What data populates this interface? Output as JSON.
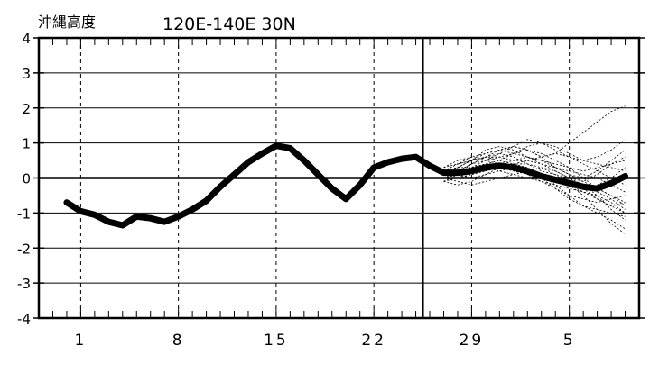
{
  "chart_data": {
    "type": "line",
    "title": "沖縄高度",
    "subtitle": "120E-140E  30N",
    "ylim": [
      -4,
      4
    ],
    "yticks": [
      4,
      3,
      2,
      1,
      0,
      -1,
      -2,
      -3,
      -4
    ],
    "xlim": [
      0,
      43
    ],
    "xtick_positions": [
      3,
      10,
      17,
      24,
      31,
      38
    ],
    "xtick_labels": [
      "1",
      "8",
      "15",
      "22",
      "29",
      "5"
    ],
    "forecast_start": 29,
    "grid": true,
    "zero_line": true,
    "series": [
      {
        "role": "analysis",
        "x": [
          2,
          3,
          4,
          5,
          6,
          7,
          8,
          9,
          10,
          11,
          12,
          13,
          14,
          15,
          16,
          17,
          18,
          19,
          20,
          21,
          22,
          23,
          24,
          25,
          26,
          27,
          28,
          29,
          30,
          31,
          32,
          33,
          34,
          35,
          36,
          37,
          38,
          39,
          40,
          41,
          42
        ],
        "y": [
          -0.7,
          -0.95,
          -1.05,
          -1.25,
          -1.35,
          -1.1,
          -1.15,
          -1.25,
          -1.1,
          -0.9,
          -0.65,
          -0.25,
          0.1,
          0.45,
          0.7,
          0.92,
          0.85,
          0.5,
          0.1,
          -0.3,
          -0.6,
          -0.2,
          0.3,
          0.45,
          0.55,
          0.6,
          0.35,
          0.15,
          0.15,
          0.2,
          0.3,
          0.35,
          0.3,
          0.2,
          0.05,
          -0.05,
          -0.15,
          -0.25,
          -0.3,
          -0.15,
          0.05
        ]
      }
    ],
    "ensemble": {
      "x_start": 29,
      "members": [
        [
          0.0,
          0.1,
          0.4,
          0.6,
          0.8,
          0.9,
          0.8,
          0.6,
          0.7,
          1.0,
          1.3,
          1.6,
          1.9,
          2.05
        ],
        [
          0.1,
          0.2,
          0.3,
          0.5,
          0.7,
          0.9,
          1.1,
          1.0,
          0.8,
          0.6,
          0.5,
          0.6,
          0.8,
          1.1
        ],
        [
          0.2,
          0.3,
          0.5,
          0.7,
          0.8,
          0.7,
          0.6,
          0.4,
          0.3,
          0.2,
          0.1,
          0.0,
          -0.2,
          -0.4
        ],
        [
          0.0,
          -0.1,
          -0.2,
          -0.1,
          0.0,
          0.1,
          0.2,
          0.3,
          0.1,
          -0.2,
          -0.5,
          -0.9,
          -1.3,
          -1.6
        ],
        [
          -0.1,
          -0.2,
          -0.1,
          0.1,
          0.3,
          0.4,
          0.3,
          0.1,
          -0.2,
          -0.5,
          -0.8,
          -1.0,
          -1.2,
          -1.45
        ],
        [
          0.1,
          0.2,
          0.4,
          0.5,
          0.6,
          0.7,
          0.8,
          0.7,
          0.5,
          0.3,
          0.0,
          -0.3,
          -0.5,
          -0.7
        ],
        [
          0.3,
          0.4,
          0.5,
          0.6,
          0.5,
          0.4,
          0.2,
          0.0,
          -0.1,
          -0.2,
          -0.4,
          -0.6,
          -0.8,
          -1.0
        ],
        [
          0.0,
          0.1,
          0.1,
          0.2,
          0.3,
          0.4,
          0.5,
          0.6,
          0.7,
          0.6,
          0.4,
          0.2,
          0.0,
          -0.2
        ],
        [
          0.2,
          0.1,
          0.0,
          0.1,
          0.2,
          0.3,
          0.2,
          0.0,
          -0.3,
          -0.6,
          -0.8,
          -0.9,
          -1.0,
          -1.1
        ],
        [
          0.1,
          0.3,
          0.5,
          0.8,
          0.9,
          0.8,
          0.6,
          0.5,
          0.4,
          0.3,
          0.2,
          0.3,
          0.4,
          0.5
        ],
        [
          -0.1,
          0.0,
          0.2,
          0.3,
          0.3,
          0.2,
          0.1,
          0.0,
          -0.1,
          -0.2,
          -0.3,
          -0.2,
          0.0,
          0.3
        ],
        [
          0.2,
          0.4,
          0.6,
          0.7,
          0.8,
          0.9,
          0.8,
          0.6,
          0.3,
          0.1,
          -0.1,
          -0.3,
          -0.5,
          -0.8
        ],
        [
          0.0,
          0.0,
          0.1,
          0.2,
          0.4,
          0.5,
          0.6,
          0.5,
          0.3,
          0.1,
          0.0,
          0.2,
          0.5,
          0.8
        ],
        [
          0.1,
          0.2,
          0.3,
          0.4,
          0.4,
          0.3,
          0.2,
          0.1,
          0.0,
          -0.1,
          -0.2,
          -0.4,
          -0.6,
          -0.9
        ],
        [
          0.3,
          0.5,
          0.6,
          0.5,
          0.4,
          0.3,
          0.1,
          -0.1,
          -0.3,
          -0.5,
          -0.6,
          -0.7,
          -0.6,
          -0.5
        ],
        [
          0.0,
          0.2,
          0.4,
          0.6,
          0.7,
          0.6,
          0.4,
          0.2,
          0.1,
          0.0,
          -0.2,
          -0.5,
          -0.9,
          -1.2
        ],
        [
          0.2,
          0.3,
          0.3,
          0.4,
          0.5,
          0.7,
          0.9,
          1.0,
          0.9,
          0.7,
          0.5,
          0.4,
          0.3,
          0.2
        ],
        [
          -0.1,
          0.1,
          0.2,
          0.2,
          0.3,
          0.4,
          0.4,
          0.3,
          0.2,
          0.0,
          -0.3,
          -0.6,
          -0.8,
          -0.7
        ],
        [
          0.1,
          0.1,
          0.2,
          0.3,
          0.2,
          0.1,
          0.0,
          -0.1,
          -0.2,
          -0.3,
          -0.4,
          -0.5,
          -0.7,
          -1.0
        ],
        [
          0.2,
          0.4,
          0.5,
          0.6,
          0.6,
          0.5,
          0.5,
          0.4,
          0.2,
          0.0,
          -0.1,
          0.1,
          0.4,
          0.6
        ]
      ]
    }
  }
}
